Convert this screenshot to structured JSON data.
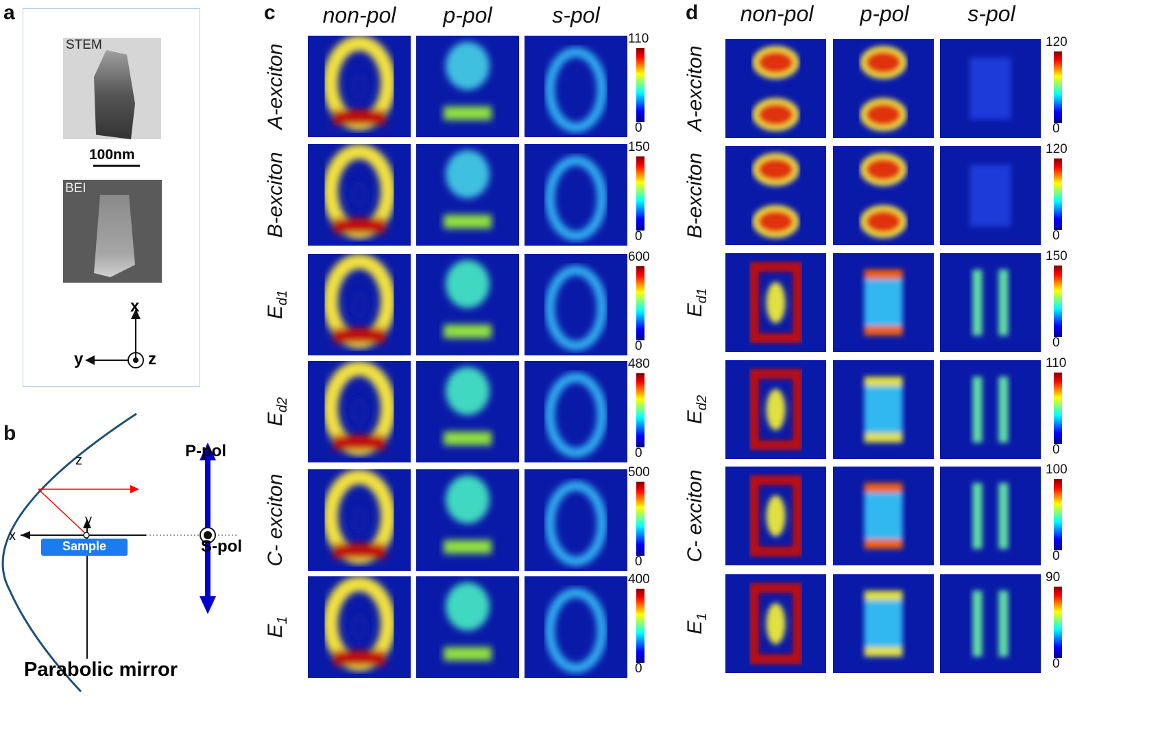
{
  "panel_a": {
    "label": "a",
    "stem_label": "STEM",
    "scale_bar": "100nm",
    "bei_label": "BEI",
    "axes": {
      "x": "x",
      "y": "y",
      "z": "z"
    }
  },
  "panel_b": {
    "label": "b",
    "axis_z": "z",
    "axis_y": "y",
    "axis_x": "x",
    "sample": "Sample",
    "p_pol": "P-pol",
    "s_pol": "S-pol",
    "caption": "Parabolic mirror"
  },
  "panel_c": {
    "label": "c",
    "columns": [
      "non-pol",
      "p-pol",
      "s-pol"
    ],
    "rows": [
      {
        "name": "A-exciton",
        "sub": "",
        "max": "110",
        "min": "0"
      },
      {
        "name": "B-exciton",
        "sub": "",
        "max": "150",
        "min": "0"
      },
      {
        "name": "E",
        "sub": "d1",
        "max": "600",
        "min": "0"
      },
      {
        "name": "E",
        "sub": "d2",
        "max": "480",
        "min": "0"
      },
      {
        "name": "C- exciton",
        "sub": "",
        "max": "500",
        "min": "0"
      },
      {
        "name": "E",
        "sub": "1",
        "max": "400",
        "min": "0"
      }
    ]
  },
  "panel_d": {
    "label": "d",
    "columns": [
      "non-pol",
      "p-pol",
      "s-pol"
    ],
    "rows": [
      {
        "name": "A-exciton",
        "sub": "",
        "max": "120",
        "min": "0"
      },
      {
        "name": "B-exciton",
        "sub": "",
        "max": "120",
        "min": "0"
      },
      {
        "name": "E",
        "sub": "d1",
        "max": "150",
        "min": "0"
      },
      {
        "name": "E",
        "sub": "d2",
        "max": "110",
        "min": "0"
      },
      {
        "name": "C- exciton",
        "sub": "",
        "max": "100",
        "min": "0"
      },
      {
        "name": "E",
        "sub": "1",
        "max": "90",
        "min": "0"
      }
    ]
  },
  "colors": {
    "map_bg": "#0a1aa8",
    "colormap": "jet",
    "mirror": "#1f4e79",
    "ray": "#ff0000",
    "pol_arrow": "#0000cc",
    "sample": "#1a7cf0"
  }
}
